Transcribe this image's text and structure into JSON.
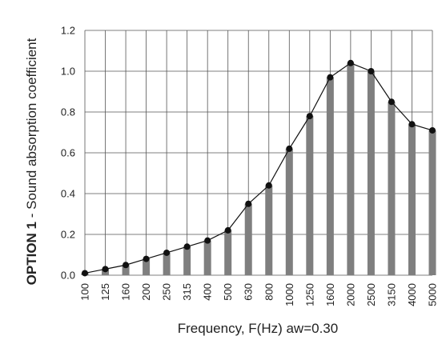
{
  "chart_data": {
    "type": "bar",
    "overlay": "line",
    "categories": [
      "100",
      "125",
      "160",
      "200",
      "250",
      "315",
      "400",
      "500",
      "630",
      "800",
      "1000",
      "1250",
      "1600",
      "2000",
      "2500",
      "3150",
      "4000",
      "5000"
    ],
    "values": [
      0.01,
      0.03,
      0.05,
      0.08,
      0.11,
      0.14,
      0.17,
      0.22,
      0.35,
      0.44,
      0.62,
      0.78,
      0.97,
      1.04,
      1.0,
      0.85,
      0.74,
      0.71
    ],
    "xlabel": "Frequency, F(Hz) aw=0.30",
    "ylabel_prefix": "OPTION 1",
    "ylabel_rest": " - Sound absorption coefficient",
    "ylim": [
      0,
      1.2
    ],
    "yticks": [
      "0.0",
      "0.2",
      "0.4",
      "0.6",
      "0.8",
      "1.0",
      "1.2"
    ],
    "grid": true,
    "colors": {
      "bar": "#7f7f7f",
      "line": "#111111",
      "grid": "#555555"
    }
  }
}
